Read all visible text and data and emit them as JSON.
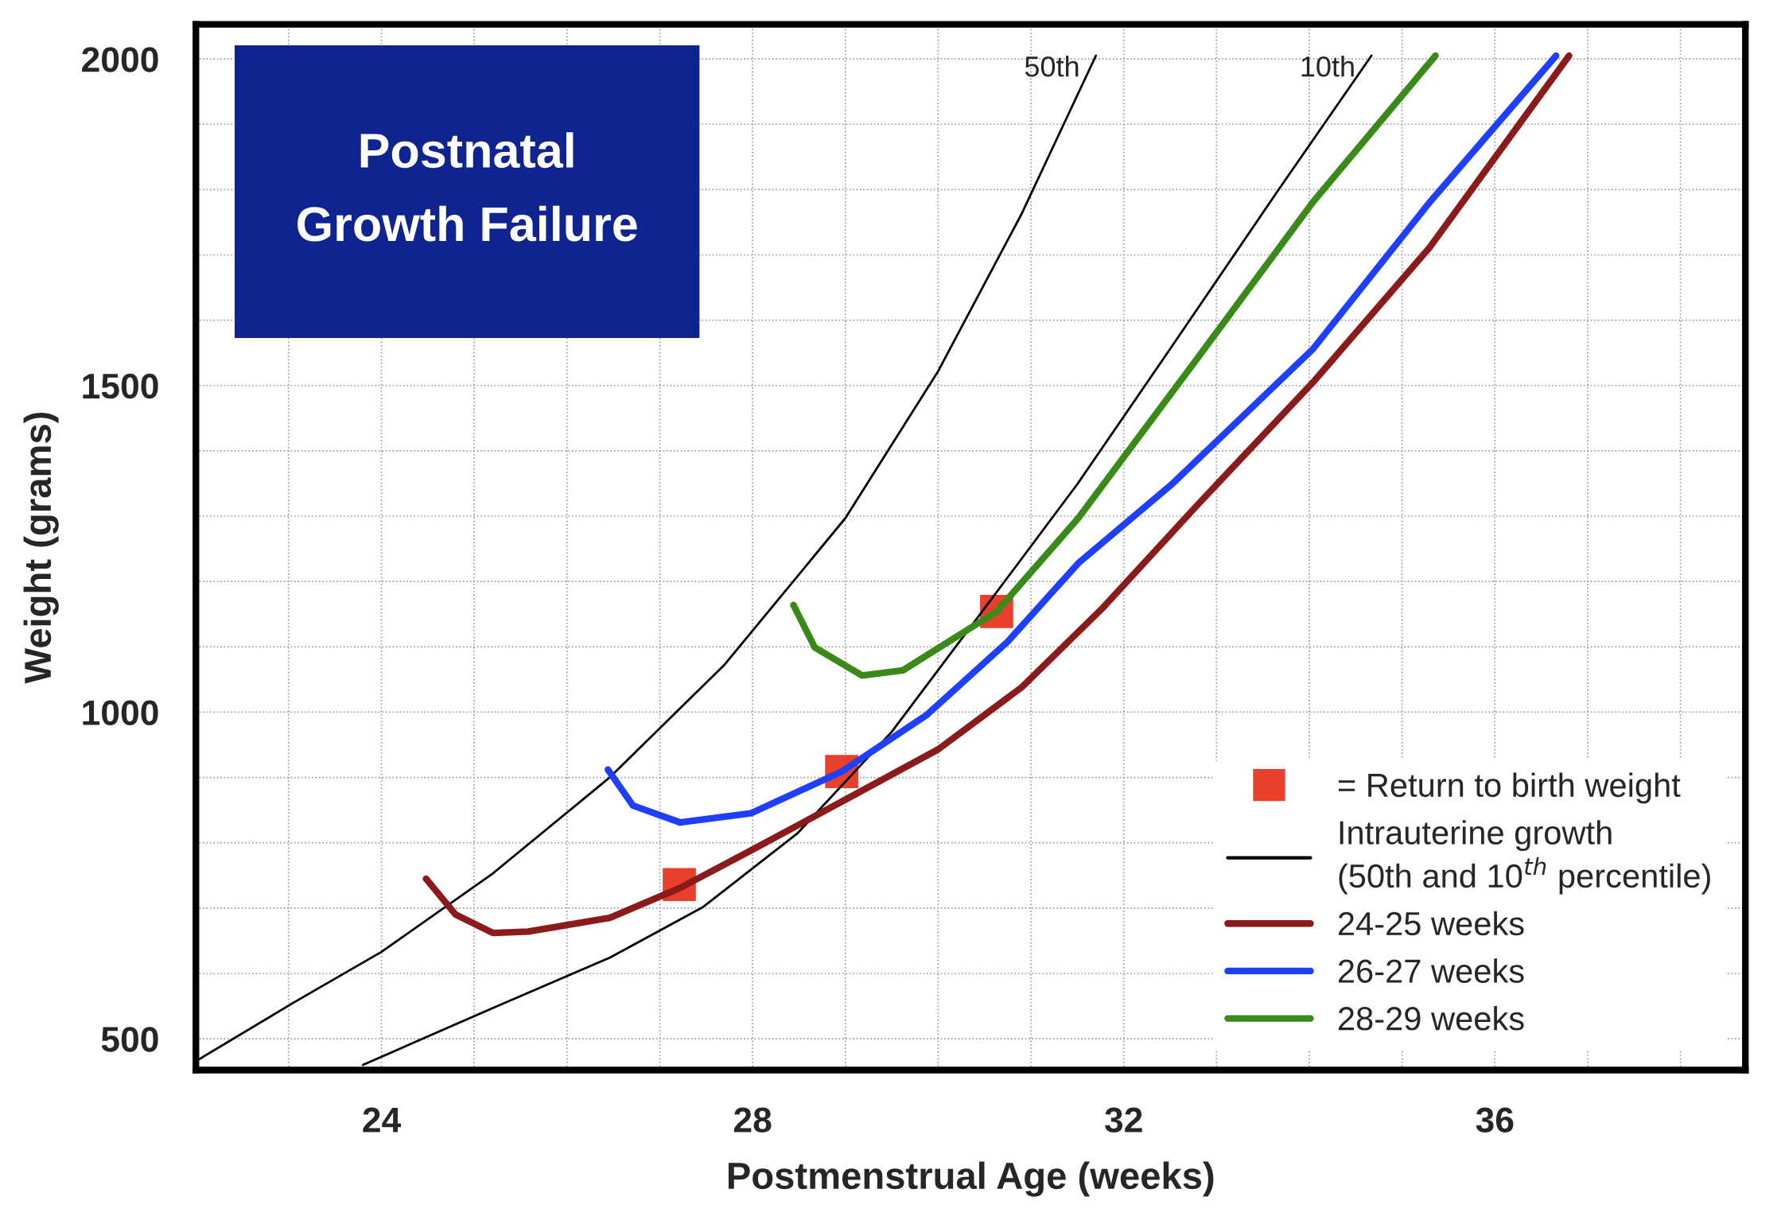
{
  "chart_data": {
    "type": "line",
    "title": "Postnatal\nGrowth Failure",
    "xlabel": "Postmenstrual Age (weeks)",
    "ylabel": "Weight (grams)",
    "xlim": [
      22,
      38.7
    ],
    "ylim": [
      452,
      2053
    ],
    "xticks": [
      {
        "value": 22,
        "label": null
      },
      {
        "value": 23,
        "label": null
      },
      24,
      {
        "value": 25,
        "label": null
      },
      {
        "value": 26,
        "label": null
      },
      {
        "value": 27,
        "label": null
      },
      28,
      {
        "value": 29,
        "label": null
      },
      {
        "value": 30,
        "label": null
      },
      {
        "value": 31,
        "label": null
      },
      32,
      {
        "value": 33,
        "label": null
      },
      {
        "value": 34,
        "label": null
      },
      {
        "value": 35,
        "label": null
      },
      36,
      {
        "value": 37,
        "label": null
      },
      {
        "value": 38,
        "label": null
      }
    ],
    "yticks": [
      500,
      {
        "value": 600,
        "label": null
      },
      {
        "value": 700,
        "label": null
      },
      {
        "value": 800,
        "label": null
      },
      {
        "value": 900,
        "label": null
      },
      1000,
      {
        "value": 1100,
        "label": null
      },
      {
        "value": 1200,
        "label": null
      },
      {
        "value": 1300,
        "label": null
      },
      {
        "value": 1400,
        "label": null
      },
      1500,
      {
        "value": 1600,
        "label": null
      },
      {
        "value": 1700,
        "label": null
      },
      {
        "value": 1800,
        "label": null
      },
      {
        "value": 1900,
        "label": null
      },
      2000
    ],
    "grid": true,
    "legend": "bottom right",
    "annotations": [
      {
        "text": "50th",
        "x": 31.7,
        "y": 2005
      },
      {
        "text": "10th",
        "x": 34.67,
        "y": 2005
      }
    ],
    "series": [
      {
        "type": "scatter",
        "name": "= Return to birth weight",
        "color": "#e8402a",
        "marker": "square",
        "x": [
          27.21,
          28.96,
          30.63
        ],
        "values": [
          736,
          909,
          1154
        ]
      },
      {
        "name": "Intrauterine growth\n(50th and 10$^{th}$ percentile)",
        "color": "#000000",
        "x": [
          22.04,
          23.05,
          24.0,
          25.2,
          26.46,
          27.7,
          29.0,
          30.0,
          30.9,
          31.7
        ],
        "values": [
          469,
          555,
          633,
          753,
          900,
          1073,
          1297,
          1522,
          1763,
          2005
        ]
      },
      {
        "color": "#000000",
        "x": [
          23.8,
          25.2,
          26.46,
          27.47,
          28.48,
          29.5,
          30.5,
          31.5,
          32.5,
          33.66,
          34.67
        ],
        "values": [
          460,
          547,
          624,
          702,
          814,
          970,
          1159,
          1349,
          1556,
          1798,
          2005
        ]
      },
      {
        "name": "24-25 weeks",
        "color": "#8b1a1a",
        "x": [
          24.48,
          24.8,
          25.2,
          25.58,
          26.46,
          27.22,
          27.98,
          29.0,
          30.0,
          30.9,
          31.77,
          32.78,
          34.04,
          35.3,
          36.8
        ],
        "values": [
          745,
          690,
          662,
          664,
          685,
          731,
          788,
          866,
          943,
          1038,
          1159,
          1315,
          1505,
          1712,
          2005
        ]
      },
      {
        "name": "26-27 weeks",
        "color": "#1f3fff",
        "x": [
          26.44,
          26.71,
          27.22,
          27.98,
          28.96,
          29.87,
          30.75,
          31.51,
          32.52,
          34.04,
          35.3,
          36.66
        ],
        "values": [
          912,
          857,
          831,
          845,
          909,
          995,
          1108,
          1228,
          1349,
          1556,
          1781,
          2005
        ]
      },
      {
        "name": "28-29 weeks",
        "color": "#3a8a1a",
        "x": [
          28.44,
          28.67,
          29.18,
          29.62,
          30.63,
          31.51,
          32.78,
          34.04,
          35.36
        ],
        "values": [
          1164,
          1099,
          1056,
          1064,
          1154,
          1297,
          1539,
          1781,
          2005
        ]
      }
    ]
  }
}
